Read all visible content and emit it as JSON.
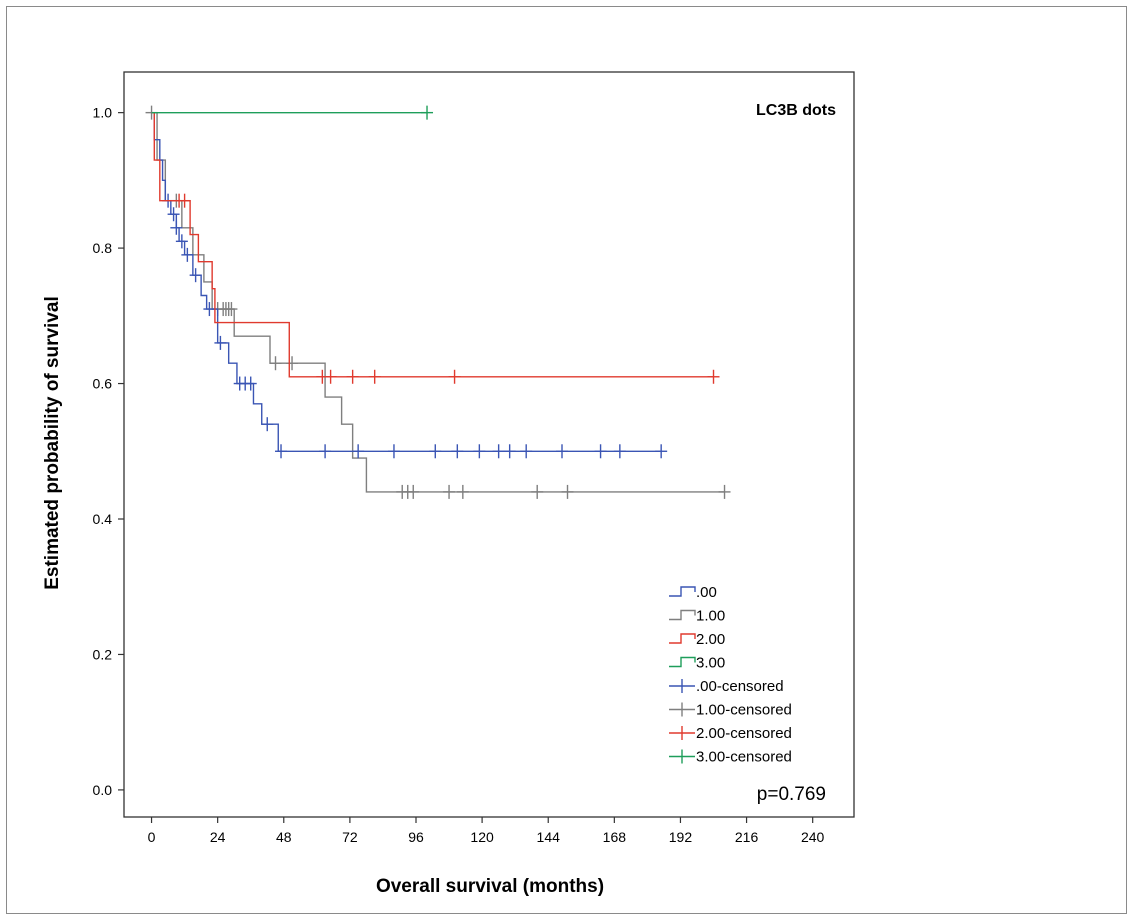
{
  "chart_data": {
    "type": "line",
    "subtype": "kaplan-meier",
    "title": "LC3B dots",
    "xlabel": "Overall survival (months)",
    "ylabel": "Estimated probability of survival",
    "xlim": [
      -10,
      255
    ],
    "ylim": [
      -0.04,
      1.06
    ],
    "xticks": [
      0,
      24,
      48,
      72,
      96,
      120,
      144,
      168,
      192,
      216,
      240
    ],
    "yticks": [
      0.0,
      0.2,
      0.4,
      0.6,
      0.8,
      1.0
    ],
    "ytick_labels": [
      "0.0",
      "0.2",
      "0.4",
      "0.6",
      "0.8",
      "1.0"
    ],
    "grid": false,
    "legend_position": "bottom-right",
    "annotation": "p=0.769",
    "legend": [
      ".00",
      "1.00",
      "2.00",
      "3.00",
      ".00-censored",
      "1.00-censored",
      "2.00-censored",
      "3.00-censored"
    ],
    "series": [
      {
        "name": ".00",
        "color": "#3a55b4",
        "steps": [
          [
            0,
            1.0
          ],
          [
            1,
            0.96
          ],
          [
            3,
            0.93
          ],
          [
            4,
            0.9
          ],
          [
            5,
            0.87
          ],
          [
            7,
            0.85
          ],
          [
            9,
            0.83
          ],
          [
            10,
            0.81
          ],
          [
            12,
            0.79
          ],
          [
            15,
            0.76
          ],
          [
            18,
            0.73
          ],
          [
            20,
            0.71
          ],
          [
            24,
            0.66
          ],
          [
            28,
            0.63
          ],
          [
            31,
            0.6
          ],
          [
            37,
            0.57
          ],
          [
            40,
            0.54
          ],
          [
            46,
            0.5
          ],
          [
            185,
            0.5
          ]
        ],
        "censored": [
          6,
          8,
          9,
          11,
          13,
          16,
          21,
          25,
          32,
          34,
          36,
          42,
          47,
          63,
          75,
          88,
          103,
          111,
          119,
          126,
          130,
          136,
          149,
          163,
          170,
          185
        ]
      },
      {
        "name": "1.00",
        "color": "#7f7f7f",
        "steps": [
          [
            0,
            1.0
          ],
          [
            2,
            0.93
          ],
          [
            5,
            0.87
          ],
          [
            11,
            0.83
          ],
          [
            15,
            0.79
          ],
          [
            19,
            0.75
          ],
          [
            22,
            0.71
          ],
          [
            30,
            0.67
          ],
          [
            43,
            0.63
          ],
          [
            63,
            0.58
          ],
          [
            69,
            0.54
          ],
          [
            73,
            0.49
          ],
          [
            78,
            0.44
          ],
          [
            208,
            0.44
          ]
        ],
        "censored": [
          0,
          9,
          24,
          26,
          27,
          28,
          29,
          45,
          51,
          91,
          93,
          95,
          108,
          113,
          140,
          151,
          208
        ]
      },
      {
        "name": "2.00",
        "color": "#e03a2e",
        "steps": [
          [
            0,
            1.0
          ],
          [
            1,
            0.93
          ],
          [
            3,
            0.87
          ],
          [
            14,
            0.82
          ],
          [
            17,
            0.78
          ],
          [
            22,
            0.74
          ],
          [
            23,
            0.69
          ],
          [
            50,
            0.61
          ],
          [
            204,
            0.61
          ]
        ],
        "censored": [
          10,
          12,
          62,
          65,
          73,
          81,
          110,
          204
        ]
      },
      {
        "name": "3.00",
        "color": "#1e9e5a",
        "steps": [
          [
            0,
            1.0
          ],
          [
            100,
            1.0
          ]
        ],
        "censored": [
          100
        ]
      }
    ]
  }
}
